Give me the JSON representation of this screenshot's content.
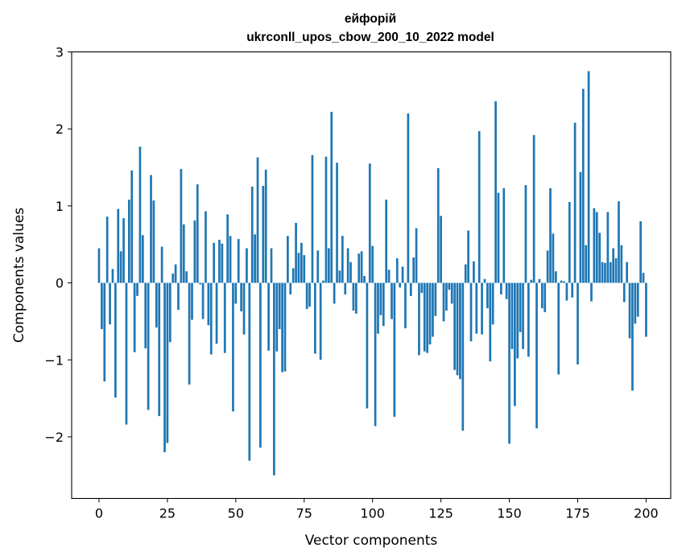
{
  "chart_data": {
    "type": "bar",
    "title": "ейфорій",
    "subtitle": "ukrconll_upos_cbow_200_10_2022 model",
    "xlabel": "Vector components",
    "ylabel": "Components values",
    "xlim": [
      -10,
      209
    ],
    "ylim": [
      -2.8,
      3.0
    ],
    "xticks": [
      0,
      25,
      50,
      75,
      100,
      125,
      150,
      175,
      200
    ],
    "yticks": [
      -2,
      -1,
      0,
      1,
      2,
      3
    ],
    "xtick_labels": [
      "0",
      "25",
      "50",
      "75",
      "100",
      "125",
      "150",
      "175",
      "200"
    ],
    "ytick_labels": [
      "−2",
      "−1",
      "0",
      "1",
      "2",
      "3"
    ],
    "grid": false,
    "color": "#1f77b4",
    "values": [
      0.45,
      -0.6,
      -1.28,
      0.86,
      -0.54,
      0.18,
      -1.49,
      0.96,
      0.41,
      0.84,
      -1.84,
      1.08,
      1.46,
      -0.9,
      -0.17,
      1.77,
      0.62,
      -0.85,
      -1.65,
      1.4,
      1.07,
      -0.58,
      -1.73,
      0.47,
      -2.2,
      -2.08,
      -0.77,
      0.12,
      0.24,
      -0.35,
      1.48,
      0.76,
      0.15,
      -1.32,
      -0.48,
      0.81,
      1.28,
      -0.02,
      -0.47,
      0.93,
      -0.55,
      -0.93,
      0.52,
      -0.79,
      0.56,
      0.51,
      -0.91,
      0.89,
      0.61,
      -1.67,
      -0.27,
      0.57,
      -0.37,
      -0.67,
      0.45,
      -2.31,
      1.25,
      0.63,
      1.63,
      -2.14,
      1.26,
      1.47,
      -0.88,
      0.45,
      -2.5,
      -0.89,
      -0.6,
      -1.16,
      -1.15,
      0.61,
      -0.15,
      0.19,
      0.78,
      0.39,
      0.52,
      0.36,
      -0.34,
      -0.31,
      1.66,
      -0.92,
      0.42,
      -1.0,
      0.03,
      1.64,
      0.45,
      2.22,
      -0.27,
      1.56,
      0.16,
      0.61,
      -0.15,
      0.45,
      0.27,
      -0.36,
      -0.4,
      0.38,
      0.41,
      0.09,
      -1.63,
      1.55,
      0.48,
      -1.86,
      -0.66,
      -0.42,
      -0.56,
      1.08,
      0.17,
      -0.47,
      -1.74,
      0.32,
      -0.06,
      0.21,
      -0.59,
      2.2,
      -0.17,
      0.33,
      0.71,
      -0.94,
      -0.13,
      -0.89,
      -0.91,
      -0.8,
      -0.7,
      -0.43,
      1.49,
      0.87,
      -0.5,
      -0.36,
      -0.09,
      -0.27,
      -1.13,
      -1.2,
      -1.25,
      -1.92,
      0.24,
      0.68,
      -0.76,
      0.28,
      -0.66,
      1.97,
      -0.67,
      0.05,
      -0.33,
      -1.02,
      -0.54,
      2.36,
      1.17,
      -0.15,
      1.23,
      -0.21,
      -2.09,
      -0.86,
      -1.6,
      -0.98,
      -0.64,
      -0.86,
      1.27,
      -0.96,
      0.04,
      1.92,
      -1.89,
      0.05,
      -0.33,
      -0.38,
      0.42,
      1.23,
      0.64,
      0.15,
      -1.19,
      0.03,
      0.02,
      -0.23,
      1.05,
      -0.19,
      2.08,
      -1.06,
      1.44,
      2.52,
      0.49,
      2.75,
      -0.24,
      0.97,
      0.92,
      0.65,
      0.27,
      0.26,
      0.92,
      0.27,
      0.45,
      0.32,
      1.06,
      0.49,
      -0.25,
      0.27,
      -0.72,
      -1.4,
      -0.53,
      -0.44,
      0.8,
      0.13,
      -0.7
    ]
  }
}
